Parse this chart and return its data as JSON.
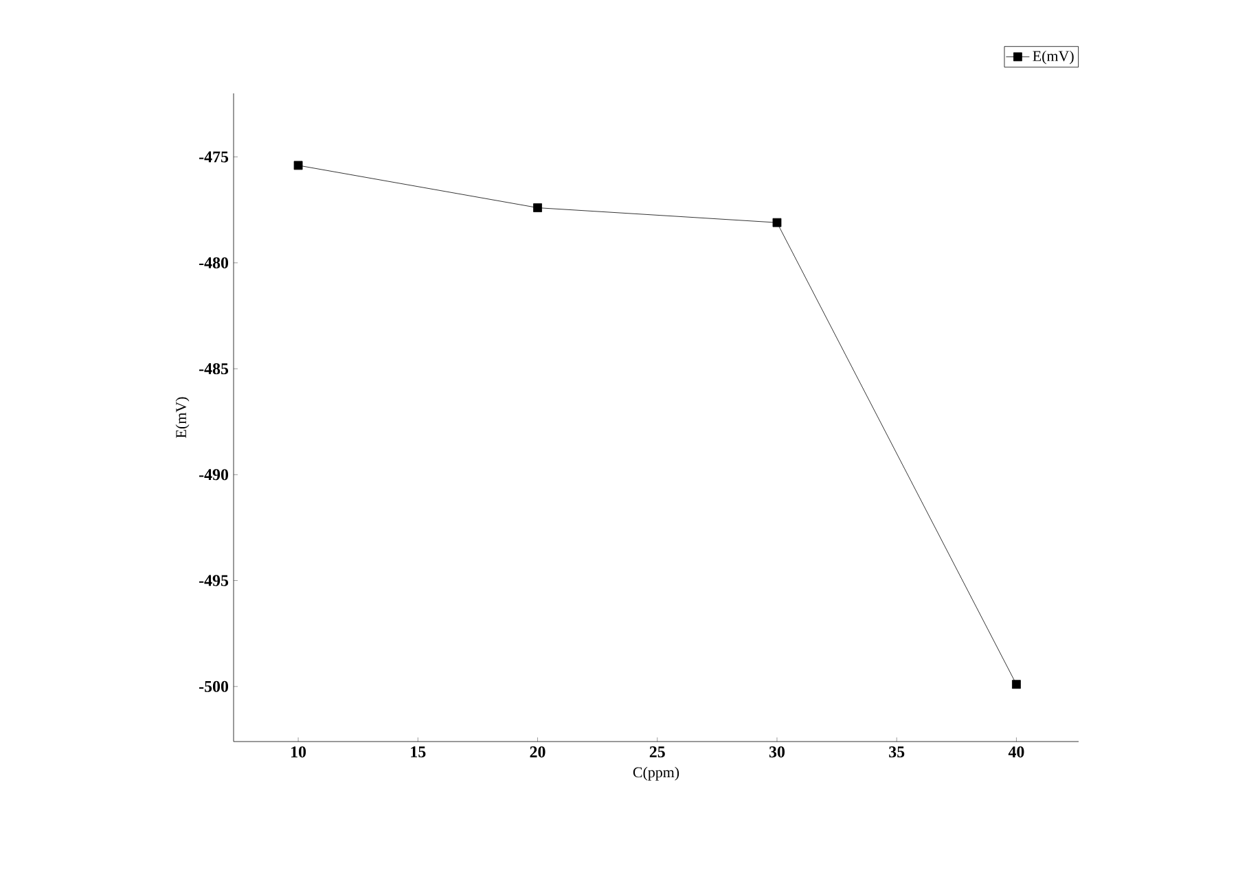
{
  "chart_data": {
    "type": "line",
    "xlabel": "C(ppm)",
    "ylabel": "E(mV)",
    "x": [
      10,
      20,
      30,
      40
    ],
    "series": [
      {
        "name": "E(mV)",
        "color": "#000000",
        "values": [
          -475.4,
          -477.4,
          -478.1,
          -499.9
        ]
      }
    ],
    "xlim": [
      7.3,
      42.6
    ],
    "ylim": [
      -502.6,
      -472
    ],
    "xticks": [
      10,
      15,
      20,
      25,
      30,
      35,
      40
    ],
    "yticks": [
      -500,
      -495,
      -490,
      -485,
      -480,
      -475
    ],
    "grid": false,
    "legend": "top right",
    "marker": "square",
    "line_style": "solid"
  }
}
